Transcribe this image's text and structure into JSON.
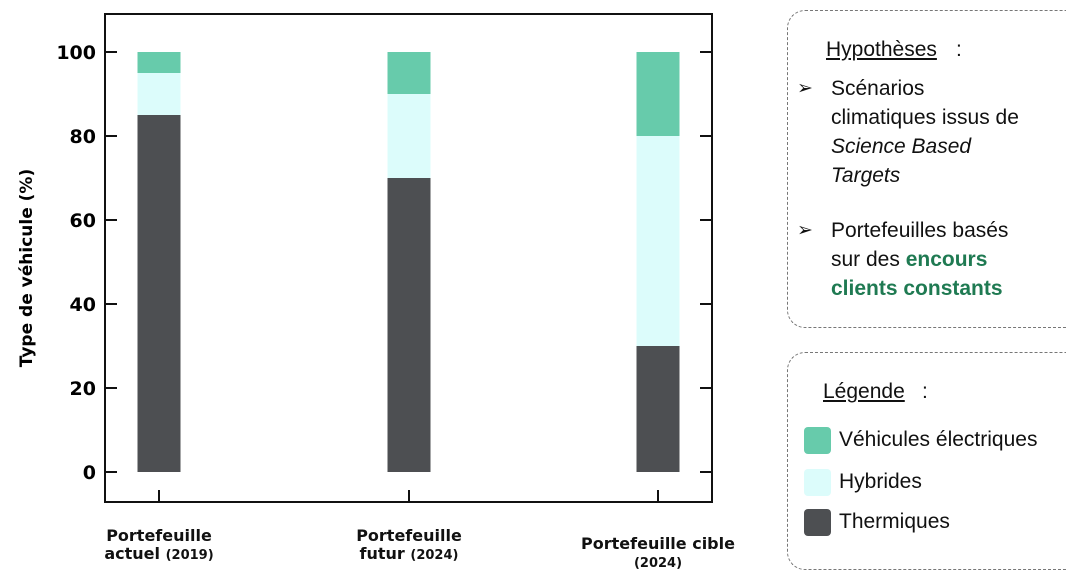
{
  "chart_data": {
    "type": "bar",
    "stacked": true,
    "categories": [
      {
        "line1": "Portefeuille",
        "line2_main": "actuel",
        "line2_sub": "(2019)"
      },
      {
        "line1": "Portefeuille",
        "line2_main": "futur",
        "line2_sub": "(2024)"
      },
      {
        "line1": "Portefeuille cible",
        "line2_main": "",
        "line2_sub": "(2024)"
      }
    ],
    "series": [
      {
        "name": "Thermiques",
        "color": "#4d4f52",
        "values": [
          85,
          70,
          30
        ]
      },
      {
        "name": "Hybrides",
        "color": "#dcfcfb",
        "values": [
          10,
          20,
          50
        ]
      },
      {
        "name": "Véhicules électriques",
        "color": "#67cbab",
        "values": [
          5,
          10,
          20
        ]
      }
    ],
    "ylabel": "Type de véhicule (%)",
    "yticks": [
      0,
      20,
      40,
      60,
      80,
      100
    ],
    "ylim": [
      0,
      100
    ],
    "grid": false
  },
  "hypotheses": {
    "title": "Hypothèses",
    "colon": ":",
    "bullet1": [
      "Scénarios",
      "climatiques issus de",
      "Science Based",
      "Targets"
    ],
    "bullet2": [
      "Portefeuilles basés",
      "sur des ",
      "encours",
      "clients constants"
    ]
  },
  "legend": {
    "title": "Légende",
    "colon": ":",
    "items": [
      {
        "label": "Véhicules électriques",
        "color": "#67cbab"
      },
      {
        "label": "Hybrides",
        "color": "#dcfcfb"
      },
      {
        "label": "Thermiques",
        "color": "#4d4f52"
      }
    ]
  }
}
